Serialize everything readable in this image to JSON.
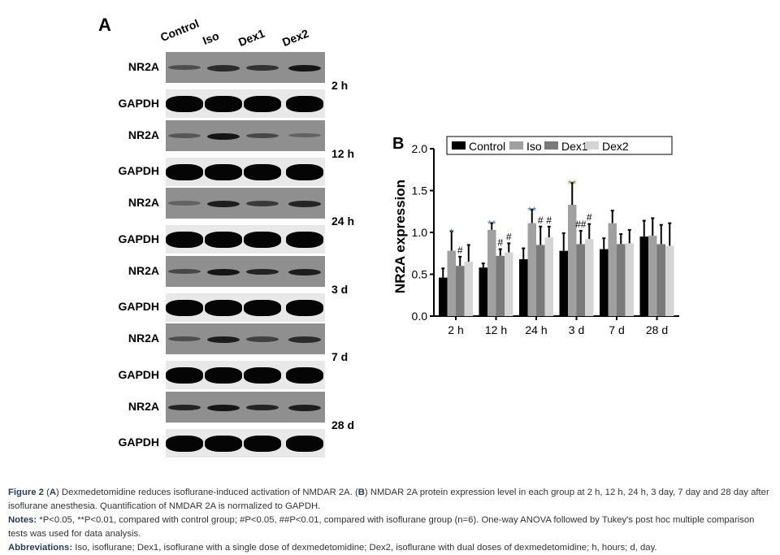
{
  "panel_a": {
    "label": "A",
    "lanes": [
      "Control",
      "Iso",
      "Dex1",
      "Dex2"
    ],
    "timepoints": [
      {
        "time": "2 h",
        "nr2a_label": "NR2A",
        "gapdh_label": "GAPDH",
        "nr2a_band_intensity": [
          0.45,
          0.7,
          0.65,
          0.85
        ]
      },
      {
        "time": "12 h",
        "nr2a_label": "NR2A",
        "gapdh_label": "GAPDH",
        "nr2a_band_intensity": [
          0.4,
          0.85,
          0.5,
          0.3
        ]
      },
      {
        "time": "24 h",
        "nr2a_label": "NR2A",
        "gapdh_label": "GAPDH",
        "nr2a_band_intensity": [
          0.3,
          0.8,
          0.6,
          0.75
        ]
      },
      {
        "time": "3 d",
        "nr2a_label": "NR2A",
        "gapdh_label": "GAPDH",
        "nr2a_band_intensity": [
          0.5,
          0.85,
          0.75,
          0.8
        ]
      },
      {
        "time": "7 d",
        "nr2a_label": "NR2A",
        "gapdh_label": "GAPDH",
        "nr2a_band_intensity": [
          0.45,
          0.8,
          0.55,
          0.7
        ]
      },
      {
        "time": "28 d",
        "nr2a_label": "NR2A",
        "gapdh_label": "GAPDH",
        "nr2a_band_intensity": [
          0.75,
          0.85,
          0.75,
          0.8
        ]
      }
    ]
  },
  "chart_data": {
    "type": "bar",
    "panel_label": "B",
    "categories": [
      "2 h",
      "12 h",
      "24 h",
      "3 d",
      "7 d",
      "28 d"
    ],
    "ylabel": "NR2A expression",
    "xlabel": "",
    "ylim": [
      0,
      2.0
    ],
    "yticks": [
      "0.0",
      "0.5",
      "1.0",
      "1.5",
      "2.0"
    ],
    "legend_position": "top",
    "series": [
      {
        "name": "Control",
        "color": "#000000",
        "values": [
          0.46,
          0.58,
          0.68,
          0.78,
          0.8,
          0.95
        ],
        "error_top": [
          0.57,
          0.63,
          0.81,
          0.99,
          0.93,
          1.14
        ]
      },
      {
        "name": "Iso",
        "color": "#a0a0a0",
        "values": [
          0.78,
          1.03,
          1.11,
          1.33,
          1.11,
          0.96
        ],
        "error_top": [
          1.01,
          1.11,
          1.27,
          1.59,
          1.26,
          1.17
        ]
      },
      {
        "name": "Dex1",
        "color": "#7a7a7a",
        "values": [
          0.6,
          0.72,
          0.85,
          0.86,
          0.86,
          0.86
        ],
        "error_top": [
          0.71,
          0.8,
          1.07,
          1.02,
          0.98,
          1.09
        ]
      },
      {
        "name": "Dex2",
        "color": "#d4d4d4",
        "values": [
          0.65,
          0.76,
          0.94,
          0.92,
          0.87,
          0.84
        ],
        "error_top": [
          0.85,
          0.87,
          1.07,
          1.1,
          1.03,
          1.11
        ]
      }
    ],
    "annotations": [
      {
        "category": "2 h",
        "series": "Iso",
        "text": "*",
        "color": "#4a6fa5"
      },
      {
        "category": "2 h",
        "series": "Dex1",
        "text": "#",
        "color": "#000000"
      },
      {
        "category": "12 h",
        "series": "Iso",
        "text": "**",
        "color": "#6a7fb0"
      },
      {
        "category": "12 h",
        "series": "Dex1",
        "text": "#",
        "color": "#000000"
      },
      {
        "category": "12 h",
        "series": "Dex2",
        "text": "#",
        "color": "#000000"
      },
      {
        "category": "24 h",
        "series": "Iso",
        "text": "**",
        "color": "#4a7fb0"
      },
      {
        "category": "24 h",
        "series": "Dex1",
        "text": "#",
        "color": "#000000"
      },
      {
        "category": "24 h",
        "series": "Dex2",
        "text": "#",
        "color": "#000000"
      },
      {
        "category": "3 d",
        "series": "Iso",
        "text": "**",
        "color": "#b08a50"
      },
      {
        "category": "3 d",
        "series": "Dex1",
        "text": "##",
        "color": "#000000"
      },
      {
        "category": "3 d",
        "series": "Dex2",
        "text": "#",
        "color": "#000000"
      }
    ]
  },
  "caption": {
    "figure_label": "Figure 2",
    "line1_a": "(",
    "a": "A",
    "line1_b": ") Dexmedetomidine reduces isoflurane-induced activation of NMDAR 2A. (",
    "b": "B",
    "line1_c": ") NMDAR 2A protein expression level in each group at 2 h, 12 h, 24 h, 3 day, 7 day and 28 day after isoflurane anesthesia. Quantification of NMDAR 2A is normalized to GAPDH.",
    "notes_label": "Notes:",
    "notes_text": " *P<0.05, **P<0.01, compared with control group; #P<0.05, ##P<0.01, compared with isoflurane group (n=6). One-way ANOVA followed by Tukey's post hoc multiple comparison tests was used for data analysis.",
    "abbr_label": "Abbreviations:",
    "abbr_text": " Iso, isoflurane; Dex1, isoflurane with a single dose of dexmedetomidine; Dex2, isoflurane with dual doses of dexmedetomidine; h, hours; d, day."
  }
}
